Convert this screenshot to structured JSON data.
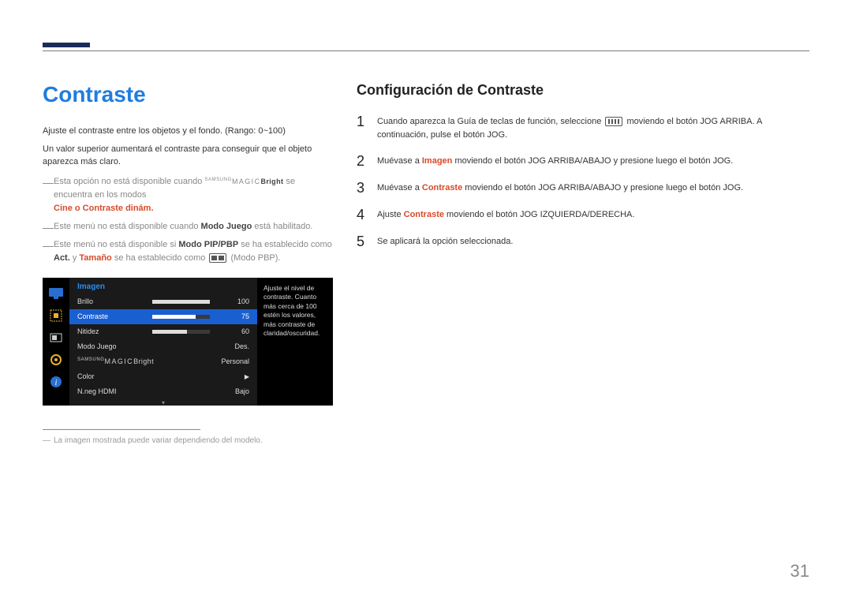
{
  "page_number": "31",
  "left": {
    "title": "Contraste",
    "p1": "Ajuste el contraste entre los objetos y el fondo. (Rango: 0~100)",
    "p2": "Un valor superior aumentará el contraste para conseguir que el objeto aparezca más claro.",
    "bullets": {
      "b1_pre": "Esta opción no está disponible cuando ",
      "b1_mb_sup": "SAMSUNG",
      "b1_mb_main": "MAGIC",
      "b1_mb_bright": "Bright",
      "b1_post": " se encuentra en los modos ",
      "b1_red": "Cine o Contraste dinám.",
      "b2_pre": "Este menú no está disponible cuando ",
      "b2_bold": "Modo Juego",
      "b2_post": " está habilitado.",
      "b3_pre": "Este menú no está disponible si ",
      "b3_bold1": "Modo PIP/PBP",
      "b3_mid": " se ha establecido como ",
      "b3_bold2": "Act.",
      "b3_and": " y ",
      "b3_red": "Tamaño",
      "b3_post1": " se ha establecido como ",
      "b3_post2": " (Modo PBP)."
    },
    "footnote": "La imagen mostrada puede variar dependiendo del modelo."
  },
  "osd": {
    "header": "Imagen",
    "tip": "Ajuste el nivel de contraste. Cuanto más cerca de 100 estén los valores, más contraste de claridad/oscuridad.",
    "rows": [
      {
        "label": "Brillo",
        "type": "slider",
        "value": "100",
        "pct": 100
      },
      {
        "label": "Contraste",
        "type": "slider",
        "value": "75",
        "pct": 75,
        "selected": true
      },
      {
        "label": "Nitidez",
        "type": "slider",
        "value": "60",
        "pct": 60
      },
      {
        "label": "Modo Juego",
        "type": "text",
        "value": "Des."
      },
      {
        "label": "MAGICBright",
        "type": "text",
        "value": "Personal",
        "magic": true
      },
      {
        "label": "Color",
        "type": "arrow",
        "value": "▶"
      },
      {
        "label": "N.neg HDMI",
        "type": "text",
        "value": "Bajo"
      }
    ],
    "footer_arrow": "▾"
  },
  "right": {
    "subtitle": "Configuración de Contraste",
    "steps": {
      "s1_a": "Cuando aparezca la Guía de teclas de función, seleccione ",
      "s1_b": " moviendo el botón JOG ARRIBA. A continuación, pulse el botón JOG.",
      "s2_a": "Muévase a ",
      "s2_img": "Imagen",
      "s2_b": " moviendo el botón JOG ARRIBA/ABAJO y presione luego el botón JOG.",
      "s3_a": "Muévase a ",
      "s3_con": "Contraste",
      "s3_b": " moviendo el botón JOG ARRIBA/ABAJO y presione luego el botón JOG.",
      "s4_a": "Ajuste ",
      "s4_con": "Contraste",
      "s4_b": " moviendo el botón JOG IZQUIERDA/DERECHA.",
      "s5": "Se aplicará la opción seleccionada."
    }
  }
}
